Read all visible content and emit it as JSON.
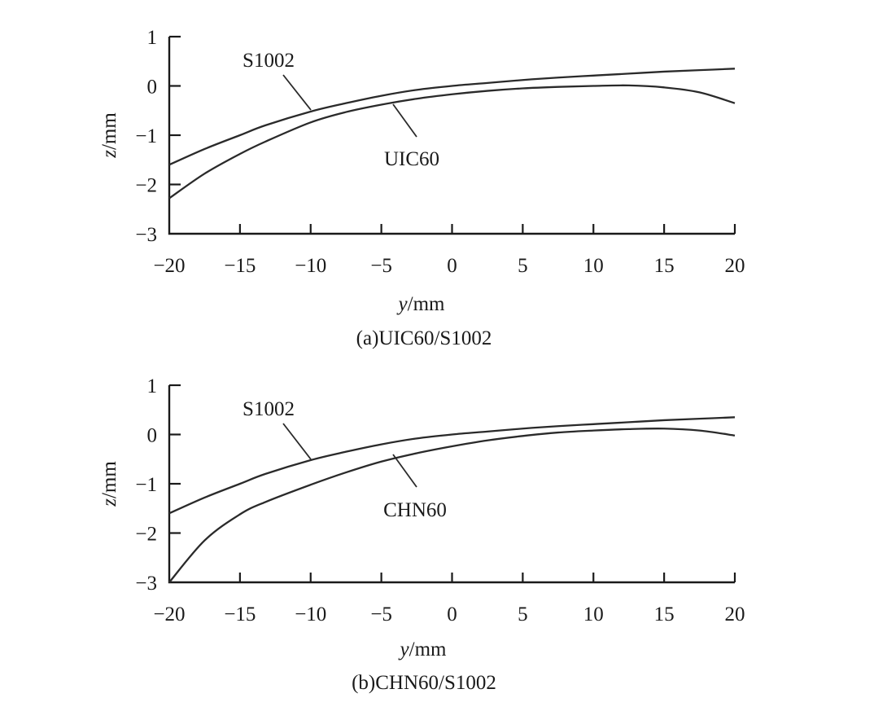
{
  "chart_data": [
    {
      "type": "line",
      "caption": "(a)UIC60/S1002",
      "xlabel": "y/mm",
      "ylabel": "z/mm",
      "xlim": [
        -20,
        20
      ],
      "ylim": [
        -3,
        1
      ],
      "x_ticks": [
        -20,
        -15,
        -10,
        -5,
        0,
        5,
        10,
        15,
        20
      ],
      "x_tick_labels": [
        "−20",
        "−15",
        "−10",
        "−5",
        "0",
        "5",
        "10",
        "15",
        "20"
      ],
      "y_ticks": [
        1,
        0,
        -1,
        -2,
        -3
      ],
      "y_tick_labels": [
        "1",
        "0",
        "−1",
        "−2",
        "−3"
      ],
      "grid": false,
      "series": [
        {
          "name": "S1002",
          "x": [
            -20,
            -17.5,
            -15,
            -13.2,
            -10,
            -7.5,
            -5,
            -2.5,
            0,
            2.5,
            5,
            7.5,
            10,
            12.5,
            15,
            17.5,
            20
          ],
          "y": [
            -1.6,
            -1.28,
            -1.0,
            -0.8,
            -0.52,
            -0.35,
            -0.2,
            -0.08,
            0.0,
            0.06,
            0.12,
            0.17,
            0.21,
            0.25,
            0.29,
            0.32,
            0.35
          ]
        },
        {
          "name": "UIC60",
          "x": [
            -20,
            -17.5,
            -15,
            -13.2,
            -10,
            -7.5,
            -5,
            -2.5,
            0,
            2.5,
            5,
            7.5,
            10,
            12.5,
            15,
            17.5,
            20
          ],
          "y": [
            -2.28,
            -1.78,
            -1.38,
            -1.13,
            -0.74,
            -0.53,
            -0.38,
            -0.26,
            -0.17,
            -0.1,
            -0.05,
            -0.02,
            0.0,
            0.01,
            -0.03,
            -0.13,
            -0.35
          ]
        }
      ],
      "annotations": [
        {
          "text": "S1002",
          "series": "S1002",
          "at_x": -10
        },
        {
          "text": "UIC60",
          "series": "UIC60",
          "at_x": -4
        }
      ]
    },
    {
      "type": "line",
      "caption": "(b)CHN60/S1002",
      "xlabel": "y/mm",
      "ylabel": "z/mm",
      "xlim": [
        -20,
        20
      ],
      "ylim": [
        -3,
        1
      ],
      "x_ticks": [
        -20,
        -15,
        -10,
        -5,
        0,
        5,
        10,
        15,
        20
      ],
      "x_tick_labels": [
        "−20",
        "−15",
        "−10",
        "−5",
        "0",
        "5",
        "10",
        "15",
        "20"
      ],
      "y_ticks": [
        1,
        0,
        -1,
        -2,
        -3
      ],
      "y_tick_labels": [
        "1",
        "0",
        "−1",
        "−2",
        "−3"
      ],
      "grid": false,
      "series": [
        {
          "name": "S1002",
          "x": [
            -20,
            -17.5,
            -15,
            -13.2,
            -10,
            -7.5,
            -5,
            -2.5,
            0,
            2.5,
            5,
            7.5,
            10,
            12.5,
            15,
            17.5,
            20
          ],
          "y": [
            -1.6,
            -1.28,
            -1.0,
            -0.8,
            -0.52,
            -0.35,
            -0.2,
            -0.08,
            0.0,
            0.06,
            0.12,
            0.17,
            0.21,
            0.25,
            0.29,
            0.32,
            0.35
          ]
        },
        {
          "name": "CHN60",
          "x": [
            -20,
            -17.5,
            -15,
            -13.2,
            -10,
            -7.5,
            -5,
            -2.5,
            0,
            2.5,
            5,
            7.5,
            10,
            12.5,
            15,
            17.5,
            20
          ],
          "y": [
            -3.0,
            -2.15,
            -1.62,
            -1.37,
            -1.02,
            -0.77,
            -0.55,
            -0.38,
            -0.24,
            -0.12,
            -0.03,
            0.04,
            0.08,
            0.11,
            0.12,
            0.08,
            -0.02
          ]
        }
      ],
      "annotations": [
        {
          "text": "S1002",
          "series": "S1002",
          "at_x": -10
        },
        {
          "text": "CHN60",
          "series": "CHN60",
          "at_x": -4
        }
      ]
    }
  ]
}
